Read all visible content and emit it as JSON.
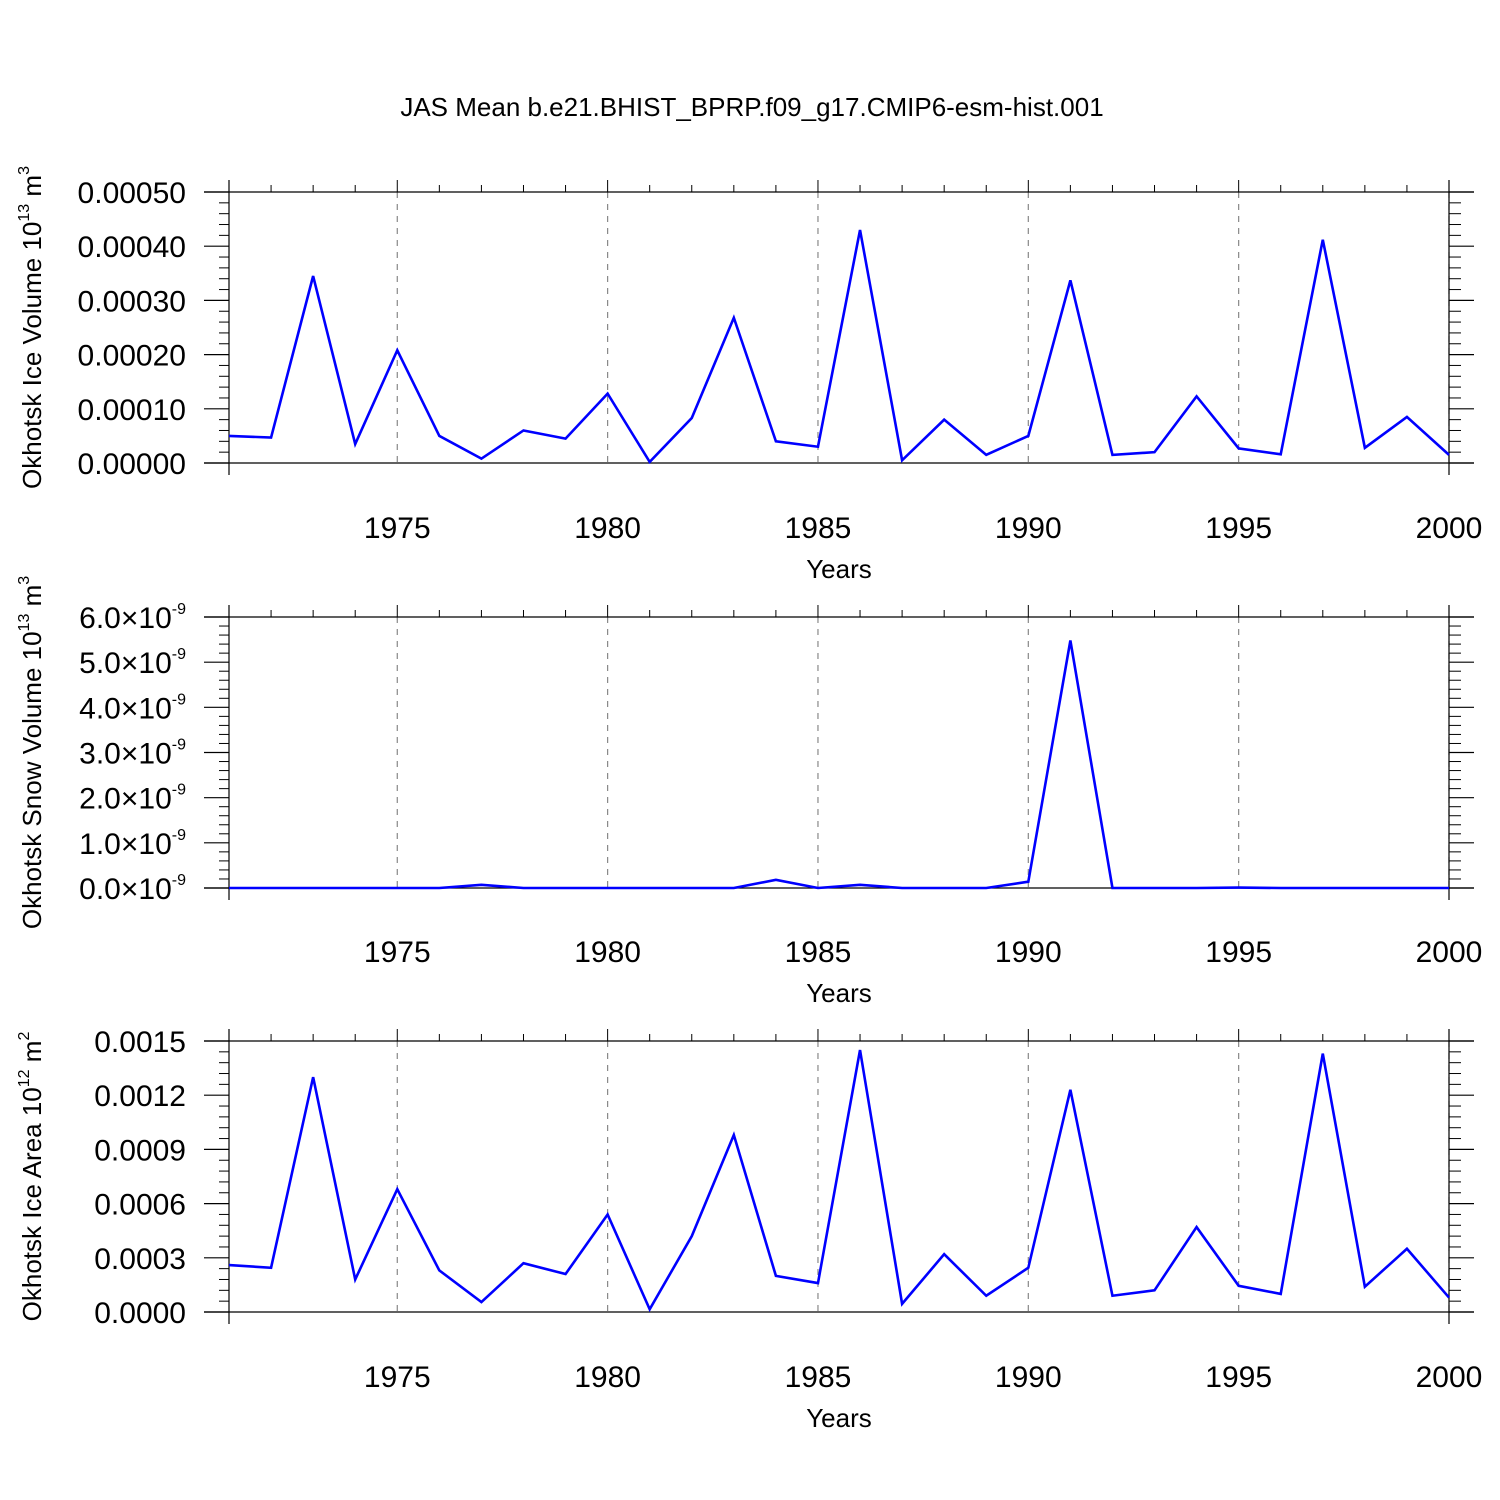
{
  "figure": {
    "title": "JAS Mean b.e21.BHIST_BPRP.f09_g17.CMIP6-esm-hist.001",
    "colors": {
      "line": "#0000ff",
      "axis": "#000000",
      "grid": "#888888",
      "background": "#ffffff"
    }
  },
  "chart_data": [
    {
      "type": "line",
      "title": "",
      "xlabel": "Years",
      "ylabel": {
        "text": "Okhotsk Ice Volume 10",
        "exponent": "13",
        "unit": " m",
        "unit_exponent": "3"
      },
      "xlim": [
        1971,
        2000
      ],
      "ylim": [
        0,
        0.0005
      ],
      "xticks": [
        1975,
        1980,
        1985,
        1990,
        1995,
        2000
      ],
      "xtick_labels": [
        "1975",
        "1980",
        "1985",
        "1990",
        "1995",
        "2000"
      ],
      "yticks": [
        0,
        0.0001,
        0.0002,
        0.0003,
        0.0004,
        0.0005
      ],
      "ytick_labels": [
        "0.00000",
        "0.00010",
        "0.00020",
        "0.00030",
        "0.00040",
        "0.00050"
      ],
      "grid": "x-dashed",
      "series": [
        {
          "name": "Okhotsk Ice Volume",
          "x": [
            1971,
            1972,
            1973,
            1974,
            1975,
            1976,
            1977,
            1978,
            1979,
            1980,
            1981,
            1982,
            1983,
            1984,
            1985,
            1986,
            1987,
            1988,
            1989,
            1990,
            1991,
            1992,
            1993,
            1994,
            1995,
            1996,
            1997,
            1998,
            1999,
            2000
          ],
          "values": [
            5e-05,
            4.7e-05,
            0.000345,
            3.5e-05,
            0.000208,
            5e-05,
            8e-06,
            6e-05,
            4.5e-05,
            0.000128,
            2e-06,
            8.3e-05,
            0.000268,
            4e-05,
            3e-05,
            0.00043,
            5e-06,
            8e-05,
            1.5e-05,
            5e-05,
            0.000337,
            1.5e-05,
            2e-05,
            0.000123,
            2.7e-05,
            1.6e-05,
            0.000412,
            2.8e-05,
            8.5e-05,
            1.5e-05
          ]
        }
      ]
    },
    {
      "type": "line",
      "title": "",
      "xlabel": "Years",
      "ylabel": {
        "text": "Okhotsk Snow Volume 10",
        "exponent": "13",
        "unit": " m",
        "unit_exponent": "3"
      },
      "xlim": [
        1971,
        2000
      ],
      "ylim": [
        0,
        6e-09
      ],
      "xticks": [
        1975,
        1980,
        1985,
        1990,
        1995,
        2000
      ],
      "xtick_labels": [
        "1975",
        "1980",
        "1985",
        "1990",
        "1995",
        "2000"
      ],
      "yticks": [
        0,
        1e-09,
        2e-09,
        3e-09,
        4e-09,
        5e-09,
        6e-09
      ],
      "ytick_labels": [
        "0.0",
        "1.0",
        "2.0",
        "3.0",
        "4.0",
        "5.0",
        "6.0"
      ],
      "ytick_multiplier": "10",
      "ytick_multiplier_exponent": "-9",
      "grid": "x-dashed",
      "series": [
        {
          "name": "Okhotsk Snow Volume",
          "x": [
            1971,
            1972,
            1973,
            1974,
            1975,
            1976,
            1977,
            1978,
            1979,
            1980,
            1981,
            1982,
            1983,
            1984,
            1985,
            1986,
            1987,
            1988,
            1989,
            1990,
            1991,
            1992,
            1993,
            1994,
            1995,
            1996,
            1997,
            1998,
            1999,
            2000
          ],
          "values": [
            0,
            0,
            0,
            0,
            0,
            0,
            7e-11,
            0,
            0,
            0,
            0,
            0,
            0,
            1.8e-10,
            0,
            7e-11,
            0,
            0,
            0,
            1.4e-10,
            5.48e-09,
            0,
            0,
            0,
            1e-11,
            0,
            0,
            0,
            0,
            0
          ]
        }
      ]
    },
    {
      "type": "line",
      "title": "",
      "xlabel": "Years",
      "ylabel": {
        "text": "Okhotsk Ice Area 10",
        "exponent": "12",
        "unit": " m",
        "unit_exponent": "2"
      },
      "xlim": [
        1971,
        2000
      ],
      "ylim": [
        0,
        0.0015
      ],
      "xticks": [
        1975,
        1980,
        1985,
        1990,
        1995,
        2000
      ],
      "xtick_labels": [
        "1975",
        "1980",
        "1985",
        "1990",
        "1995",
        "2000"
      ],
      "yticks": [
        0,
        0.0003,
        0.0006,
        0.0009,
        0.0012,
        0.0015
      ],
      "ytick_labels": [
        "0.0000",
        "0.0003",
        "0.0006",
        "0.0009",
        "0.0012",
        "0.0015"
      ],
      "grid": "x-dashed",
      "series": [
        {
          "name": "Okhotsk Ice Area",
          "x": [
            1971,
            1972,
            1973,
            1974,
            1975,
            1976,
            1977,
            1978,
            1979,
            1980,
            1981,
            1982,
            1983,
            1984,
            1985,
            1986,
            1987,
            1988,
            1989,
            1990,
            1991,
            1992,
            1993,
            1994,
            1995,
            1996,
            1997,
            1998,
            1999,
            2000
          ],
          "values": [
            0.00026,
            0.000245,
            0.0013,
            0.00018,
            0.00068,
            0.00023,
            5.5e-05,
            0.00027,
            0.00021,
            0.00054,
            1.5e-05,
            0.00042,
            0.00098,
            0.0002,
            0.00016,
            0.00145,
            4.5e-05,
            0.00032,
            9e-05,
            0.000245,
            0.00123,
            9e-05,
            0.00012,
            0.00047,
            0.000145,
            0.0001,
            0.00143,
            0.00014,
            0.00035,
            8e-05
          ]
        }
      ]
    }
  ]
}
